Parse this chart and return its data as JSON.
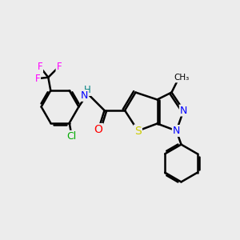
{
  "bg_color": "#ececec",
  "bond_color": "#000000",
  "bond_width": 1.8,
  "atom_colors": {
    "N": "#0000ff",
    "O": "#ff0000",
    "S": "#cccc00",
    "F": "#ff00ff",
    "Cl": "#00aa00",
    "C": "#000000",
    "H": "#008080"
  },
  "font_size": 8.5,
  "fig_size": [
    3.0,
    3.0
  ],
  "dpi": 100
}
